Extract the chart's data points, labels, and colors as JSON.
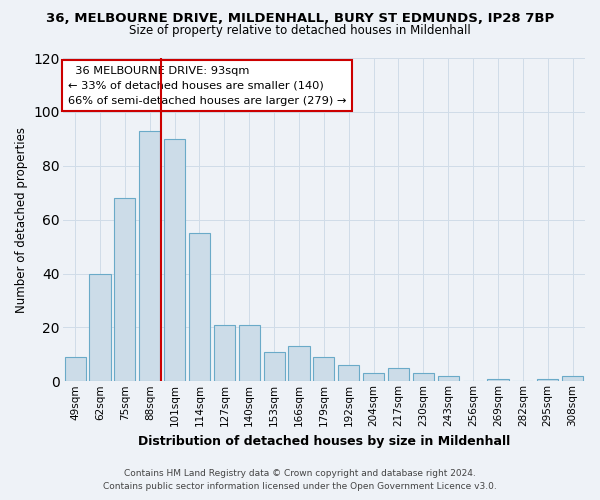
{
  "title_line1": "36, MELBOURNE DRIVE, MILDENHALL, BURY ST EDMUNDS, IP28 7BP",
  "title_line2": "Size of property relative to detached houses in Mildenhall",
  "xlabel": "Distribution of detached houses by size in Mildenhall",
  "ylabel": "Number of detached properties",
  "bar_labels": [
    "49sqm",
    "62sqm",
    "75sqm",
    "88sqm",
    "101sqm",
    "114sqm",
    "127sqm",
    "140sqm",
    "153sqm",
    "166sqm",
    "179sqm",
    "192sqm",
    "204sqm",
    "217sqm",
    "230sqm",
    "243sqm",
    "256sqm",
    "269sqm",
    "282sqm",
    "295sqm",
    "308sqm"
  ],
  "bar_values": [
    9,
    40,
    68,
    93,
    90,
    55,
    21,
    21,
    11,
    13,
    9,
    6,
    3,
    5,
    3,
    2,
    0,
    1,
    0,
    1,
    2
  ],
  "bar_color": "#ccdce8",
  "bar_edge_color": "#6aaac8",
  "vline_color": "#cc0000",
  "annotation_line1": "36 MELBOURNE DRIVE: 93sqm",
  "annotation_line2": "← 33% of detached houses are smaller (140)",
  "annotation_line3": "66% of semi-detached houses are larger (279) →",
  "annotation_box_color": "#cc0000",
  "annotation_bg": "#ffffff",
  "ylim": [
    0,
    120
  ],
  "yticks": [
    0,
    20,
    40,
    60,
    80,
    100,
    120
  ],
  "grid_color": "#d0dce8",
  "bg_color": "#eef2f7",
  "footnote1": "Contains HM Land Registry data © Crown copyright and database right 2024.",
  "footnote2": "Contains public sector information licensed under the Open Government Licence v3.0."
}
